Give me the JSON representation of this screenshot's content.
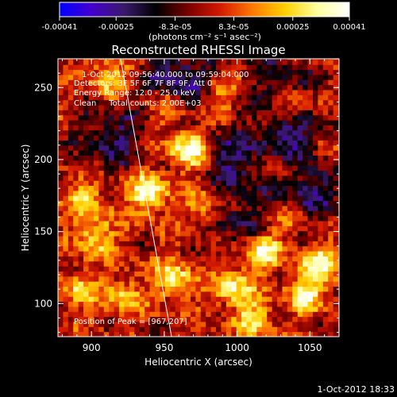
{
  "chart_data": {
    "type": "heatmap",
    "title": "Reconstructed RHESSI Image",
    "xlabel": "Heliocentric X (arcsec)",
    "ylabel": "Heliocentric Y (arcsec)",
    "xlim": [
      877,
      1070
    ],
    "ylim": [
      77,
      270
    ],
    "x_ticks": [
      900,
      950,
      1000,
      1050
    ],
    "y_ticks": [
      100,
      150,
      200,
      250
    ],
    "colorbar": {
      "colormap": "hot-diverging",
      "colors": [
        "#0000ff",
        "#4400cc",
        "#3a1a6a",
        "#000000",
        "#7a0000",
        "#d41a00",
        "#ff7a00",
        "#ffd000",
        "#ffffa0",
        "#ffffff"
      ],
      "min": -0.00041,
      "max": 0.00041,
      "tick_values": [
        -0.00041,
        -0.00025,
        -8.3e-05,
        8.3e-05,
        0.00025,
        0.00041
      ],
      "tick_labels": [
        "-0.00041",
        "-0.00025",
        "-8.3e-05",
        "8.3e-05",
        "0.00025",
        "0.00041"
      ],
      "units_label": "(photons cm⁻² s⁻¹ asec⁻²)"
    },
    "annotations": [
      "1-Oct-2012 09:56:40.000 to 09:59:04.000",
      "Detectors: 3F 5F 6F 7F 8F 9F, Att 0",
      "Energy Range: 12.0 - 25.0 keV",
      "Clean     Total counts: 2.00E+03"
    ],
    "peak_label": "Position of Peak = [967,207]",
    "peak_position": [
      967,
      207
    ],
    "limb_line": {
      "x": [
        920,
        955
      ],
      "y": [
        270,
        77
      ]
    },
    "bright_sources": [
      {
        "x": 967,
        "y": 207,
        "level": 1.0
      },
      {
        "x": 939,
        "y": 177,
        "level": 0.95
      },
      {
        "x": 1017,
        "y": 137,
        "level": 0.85
      },
      {
        "x": 1057,
        "y": 127,
        "level": 0.8
      },
      {
        "x": 997,
        "y": 112,
        "level": 0.75
      },
      {
        "x": 1012,
        "y": 90,
        "level": 0.6
      },
      {
        "x": 1047,
        "y": 107,
        "level": 0.65
      },
      {
        "x": 952,
        "y": 237,
        "level": 0.55
      },
      {
        "x": 1039,
        "y": 237,
        "level": 0.55
      },
      {
        "x": 977,
        "y": 167,
        "level": 0.5
      },
      {
        "x": 912,
        "y": 257,
        "level": 0.6
      },
      {
        "x": 957,
        "y": 117,
        "level": 0.7
      },
      {
        "x": 902,
        "y": 147,
        "level": 0.65
      },
      {
        "x": 897,
        "y": 172,
        "level": 0.55
      },
      {
        "x": 922,
        "y": 105,
        "level": 0.55
      },
      {
        "x": 1027,
        "y": 197,
        "level": 0.4
      },
      {
        "x": 1037,
        "y": 160,
        "level": 0.4
      },
      {
        "x": 987,
        "y": 245,
        "level": 0.45
      },
      {
        "x": 892,
        "y": 110,
        "level": 0.5
      },
      {
        "x": 1062,
        "y": 205,
        "level": 0.3
      }
    ],
    "negative_regions": [
      {
        "x": 960,
        "y": 255,
        "level": -0.7
      },
      {
        "x": 1040,
        "y": 215,
        "level": -0.6
      },
      {
        "x": 1000,
        "y": 200,
        "level": -0.55
      },
      {
        "x": 1050,
        "y": 175,
        "level": -0.5
      },
      {
        "x": 1000,
        "y": 155,
        "level": -0.4
      },
      {
        "x": 915,
        "y": 215,
        "level": -0.5
      },
      {
        "x": 1030,
        "y": 255,
        "level": -0.4
      }
    ]
  },
  "footer": {
    "timestamp": "1-Oct-2012 18:33"
  }
}
